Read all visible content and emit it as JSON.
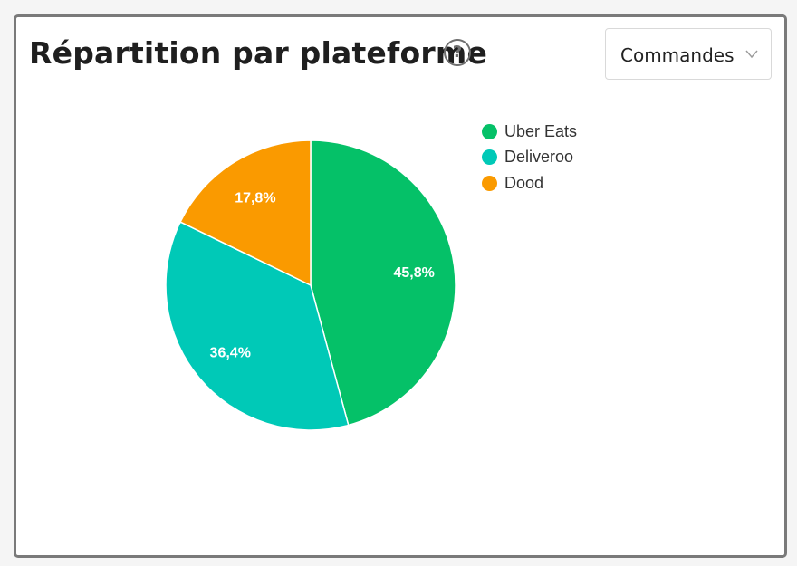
{
  "header": {
    "title": "Répartition par plateforme",
    "help_icon": "question-circle-icon"
  },
  "dropdown": {
    "selected": "Commandes",
    "icon": "chevron-down-icon"
  },
  "chart_data": {
    "type": "pie",
    "title": "Répartition par plateforme",
    "legend_position": "top-right",
    "categories": [
      "Uber Eats",
      "Deliveroo",
      "Dood"
    ],
    "values": [
      45.8,
      36.4,
      17.8
    ],
    "value_labels": [
      "45,8%",
      "36,4%",
      "17,8%"
    ],
    "colors": [
      "#05c168",
      "#00c9b7",
      "#fa9a00"
    ]
  }
}
